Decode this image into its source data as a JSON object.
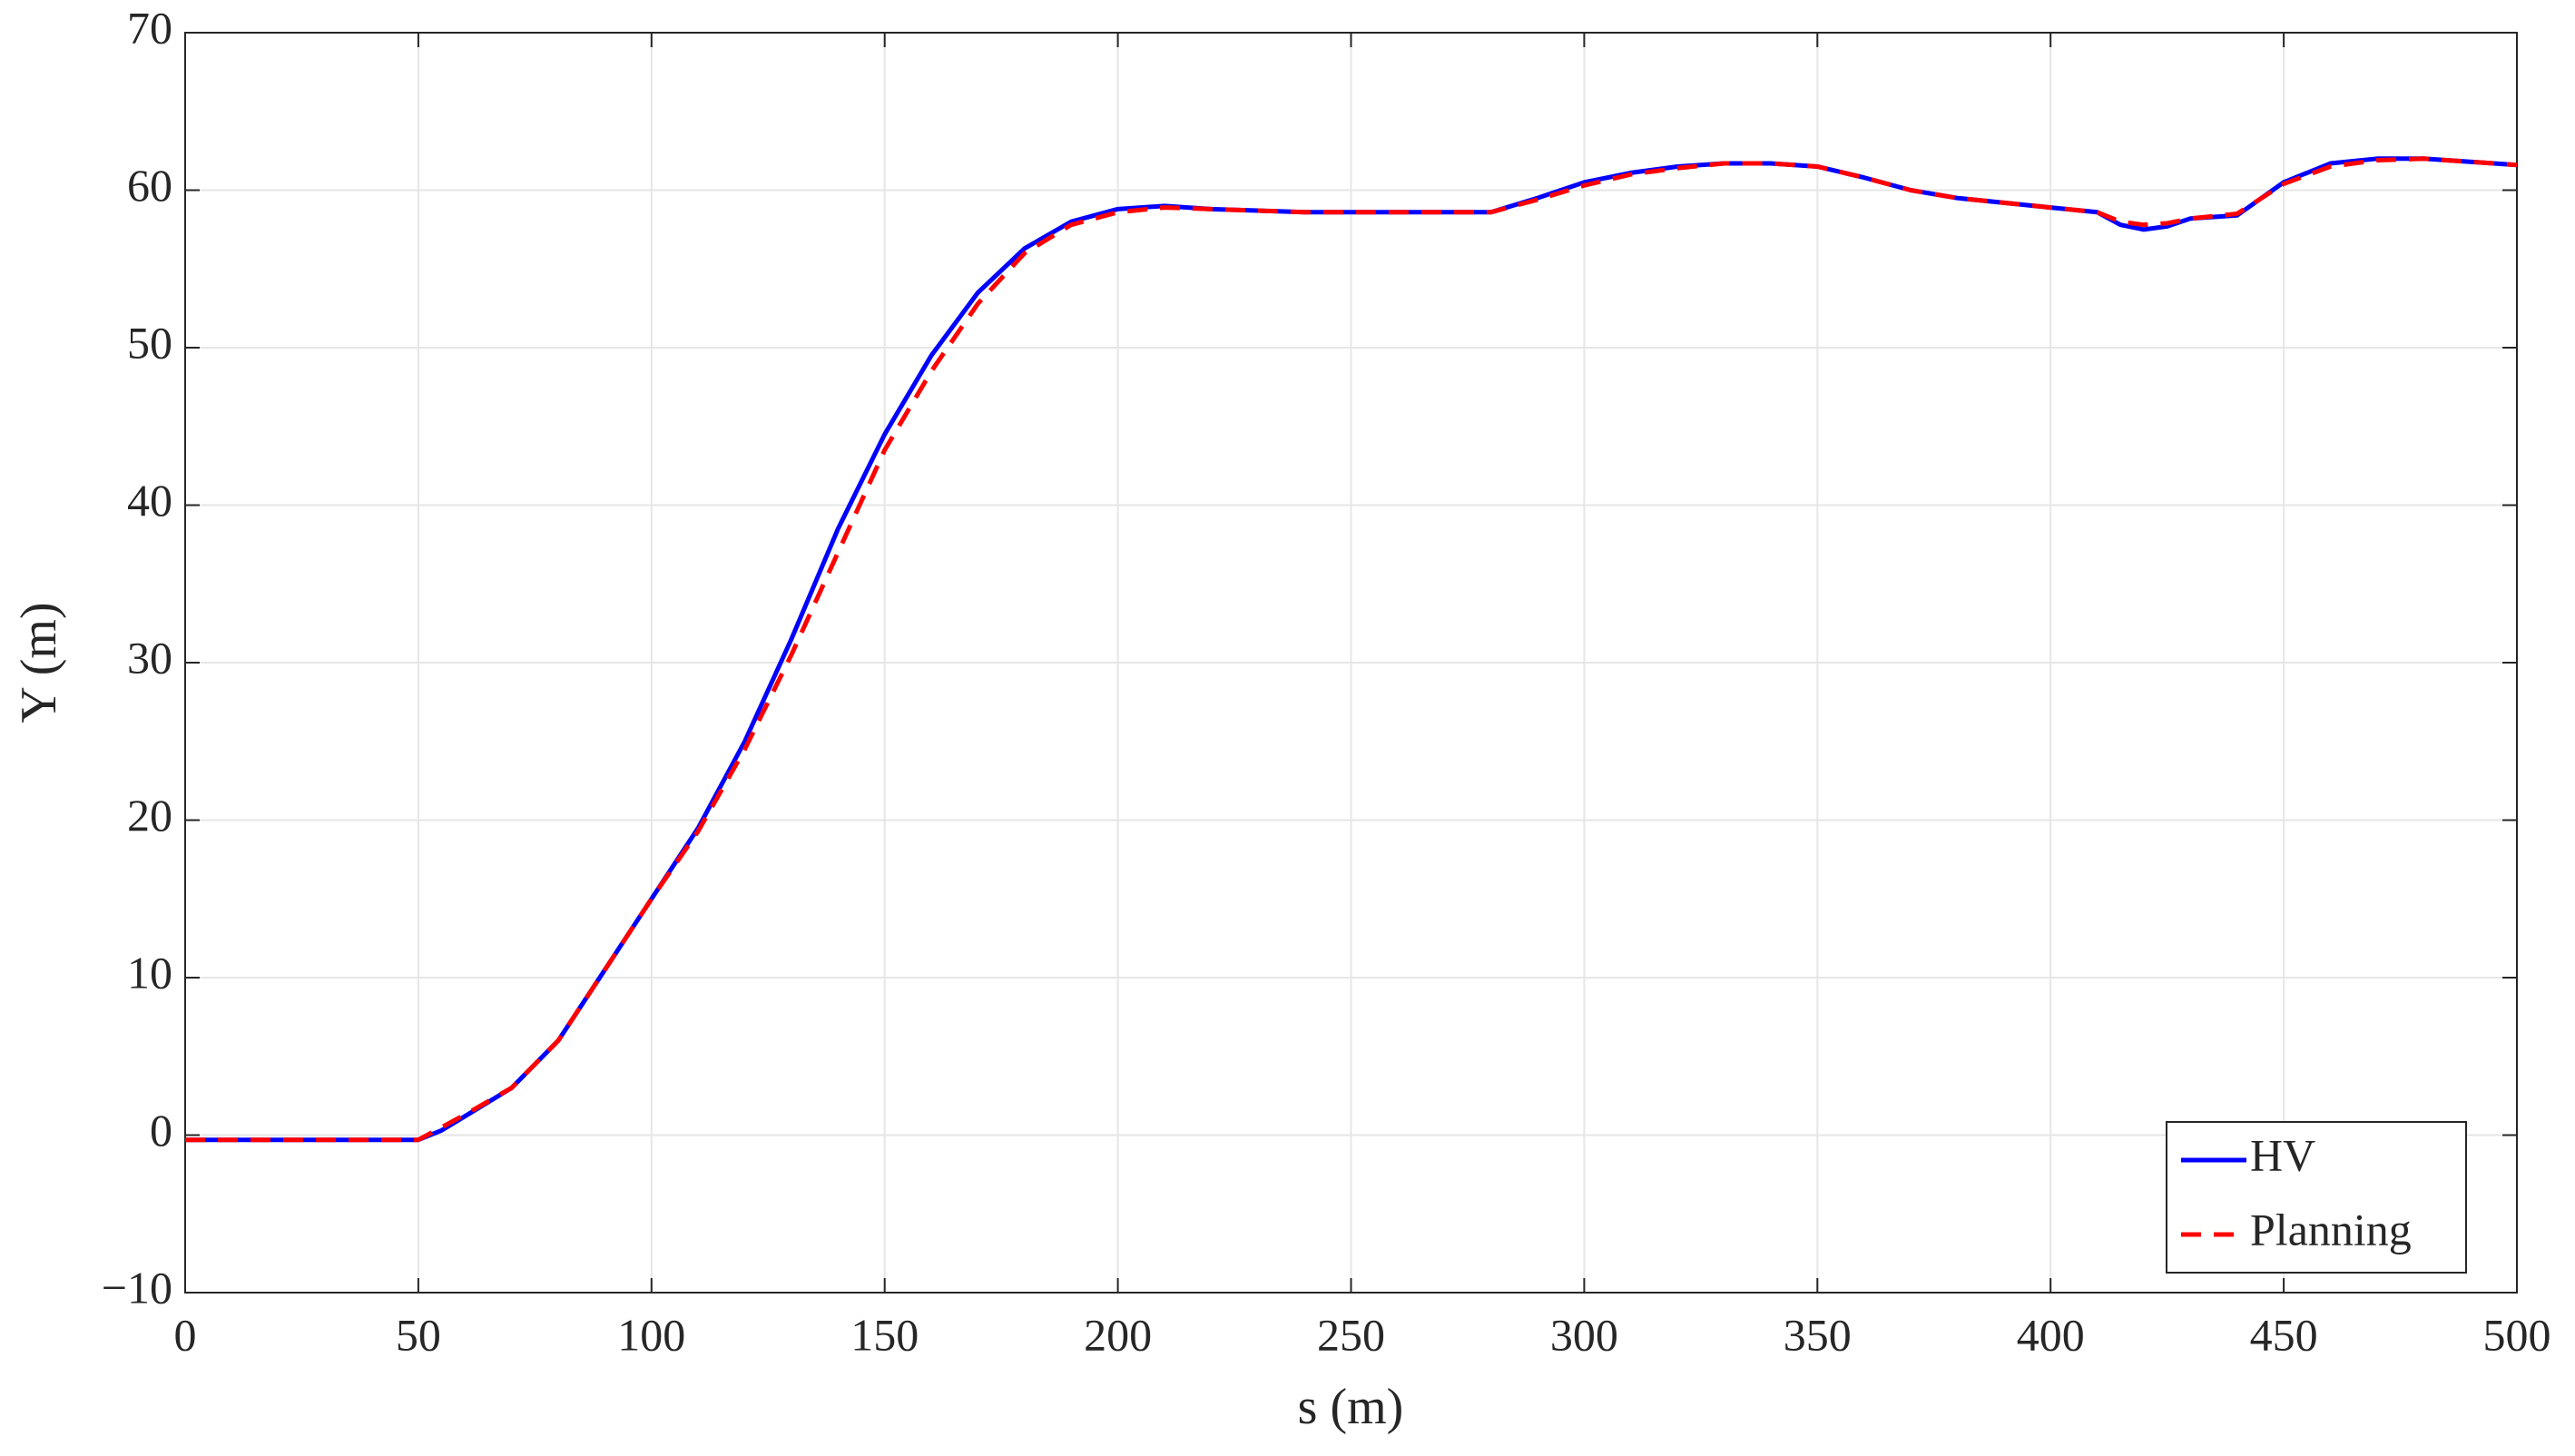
{
  "chart_data": {
    "type": "line",
    "x_label": "s (m)",
    "y_label": "Y (m)",
    "x": [
      0,
      10,
      20,
      30,
      40,
      50,
      55,
      60,
      70,
      80,
      90,
      100,
      110,
      120,
      130,
      140,
      150,
      160,
      170,
      180,
      190,
      200,
      210,
      220,
      230,
      240,
      250,
      260,
      270,
      280,
      290,
      300,
      310,
      320,
      330,
      340,
      350,
      360,
      370,
      380,
      390,
      400,
      410,
      415,
      420,
      425,
      430,
      440,
      450,
      460,
      470,
      480,
      490,
      500
    ],
    "series": [
      {
        "name": "HV",
        "color": "#0000ff",
        "dash": false,
        "values": [
          -0.3,
          -0.3,
          -0.3,
          -0.3,
          -0.3,
          -0.3,
          0.3,
          1.2,
          3,
          6,
          10.5,
          15,
          19.5,
          25,
          31.5,
          38.5,
          44.5,
          49.5,
          53.5,
          56.3,
          58,
          58.8,
          59,
          58.8,
          58.7,
          58.6,
          58.6,
          58.6,
          58.6,
          58.6,
          59.5,
          60.5,
          61.1,
          61.5,
          61.7,
          61.7,
          61.5,
          60.8,
          60,
          59.5,
          59.2,
          58.9,
          58.6,
          57.8,
          57.5,
          57.7,
          58.2,
          58.4,
          60.5,
          61.7,
          62,
          62,
          61.8,
          61.6
        ]
      },
      {
        "name": "Planning",
        "color": "#ff0000",
        "dash": true,
        "values": [
          -0.3,
          -0.3,
          -0.3,
          -0.3,
          -0.3,
          -0.3,
          0.5,
          1.3,
          3,
          6,
          10.5,
          15,
          19.3,
          24.5,
          30.5,
          37,
          43.5,
          48.5,
          52.8,
          56,
          57.8,
          58.6,
          58.9,
          58.8,
          58.7,
          58.6,
          58.6,
          58.6,
          58.6,
          58.6,
          59.4,
          60.3,
          61,
          61.4,
          61.7,
          61.7,
          61.5,
          60.8,
          60,
          59.5,
          59.2,
          58.9,
          58.6,
          58,
          57.8,
          57.9,
          58.2,
          58.5,
          60.4,
          61.5,
          61.9,
          62,
          61.8,
          61.6
        ]
      }
    ],
    "xlim": [
      0,
      500
    ],
    "xticks": [
      0,
      50,
      100,
      150,
      200,
      250,
      300,
      350,
      400,
      450,
      500
    ],
    "ylim": [
      -10,
      70
    ],
    "yticks": [
      {
        "value": -10,
        "label": "−10"
      },
      0,
      10,
      20,
      30,
      40,
      50,
      60,
      70
    ],
    "grid": true,
    "legend": "lower right"
  }
}
